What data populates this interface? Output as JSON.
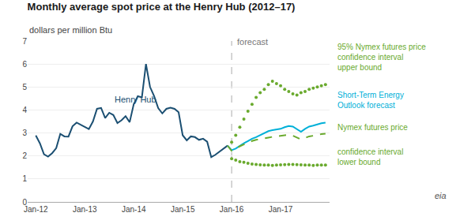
{
  "chart_data": {
    "type": "line",
    "title": "Monthly average spot price at the Henry Hub (2012–17)",
    "subtitle": "dollars per million Btu",
    "xlim": [
      -2,
      72
    ],
    "xticks": [
      {
        "value": 0,
        "label": "Jan-12"
      },
      {
        "value": 12,
        "label": "Jan-13"
      },
      {
        "value": 24,
        "label": "Jan-14"
      },
      {
        "value": 36,
        "label": "Jan-15"
      },
      {
        "value": 48,
        "label": "Jan-16"
      },
      {
        "value": 60,
        "label": "Jan-17"
      }
    ],
    "ylim": [
      0,
      7
    ],
    "yticks": [
      0,
      1,
      2,
      3,
      4,
      5,
      6,
      7
    ],
    "grid": "y",
    "vlines": [
      {
        "x": 48,
        "color": "#aaaaaa",
        "line_style": "dash"
      }
    ],
    "annotations": [
      {
        "text": "forecast",
        "x": 49,
        "y": 6.7,
        "color": "#777777"
      },
      {
        "text": "Henry Hub",
        "x": 19,
        "y": 4.2,
        "color": "#1b4f72"
      }
    ],
    "logo_text": "eia",
    "series": [
      {
        "color": "#1b4f72",
        "line_style": "solid",
        "marker": "none",
        "x": [
          0,
          1,
          2,
          3,
          4,
          5,
          6,
          7,
          8,
          9,
          10,
          11,
          12,
          13,
          14,
          15,
          16,
          17,
          18,
          19,
          20,
          21,
          22,
          23,
          24,
          25,
          26,
          27,
          28,
          29,
          30,
          31,
          32,
          33,
          34,
          35,
          36,
          37,
          38,
          39,
          40,
          41,
          42,
          43,
          44,
          45,
          46,
          47
        ],
        "values": [
          2.89,
          2.55,
          2.07,
          1.97,
          2.12,
          2.34,
          2.96,
          2.85,
          2.84,
          3.29,
          3.45,
          3.36,
          3.27,
          3.17,
          3.5,
          4.05,
          4.09,
          3.65,
          3.88,
          3.78,
          3.43,
          3.55,
          3.73,
          3.47,
          4.25,
          4.6,
          4.55,
          6.0,
          5.0,
          4.6,
          4.08,
          3.85,
          4.05,
          4.1,
          4.05,
          3.9,
          2.9,
          2.68,
          2.85,
          2.82,
          2.7,
          2.75,
          2.62,
          1.95,
          2.05,
          2.18,
          2.3,
          2.45
        ]
      },
      {
        "name": "Short-Term Energy\nOutlook forecast",
        "color": "#00b0d8",
        "line_style": "solid",
        "marker": "none",
        "x": [
          47,
          48,
          49,
          50,
          51,
          52,
          53,
          54,
          55,
          56,
          57,
          58,
          59,
          60,
          61,
          62,
          63,
          64,
          65,
          66,
          67,
          68,
          69,
          70,
          71
        ],
        "values": [
          2.45,
          2.25,
          2.32,
          2.45,
          2.55,
          2.65,
          2.75,
          2.82,
          2.9,
          3.0,
          3.08,
          3.12,
          3.15,
          3.18,
          3.25,
          3.3,
          3.28,
          3.15,
          3.05,
          3.18,
          3.28,
          3.32,
          3.38,
          3.42,
          3.45
        ]
      },
      {
        "name": "Nymex futures price",
        "color": "#6aaa2e",
        "line_style": "dash",
        "marker": "none",
        "x": [
          47,
          48,
          49,
          50,
          51,
          52,
          53,
          54,
          55,
          56,
          57,
          58,
          59,
          60,
          61,
          62,
          63,
          64,
          65,
          66,
          67,
          68,
          69,
          70,
          71
        ],
        "values": [
          2.45,
          2.22,
          2.3,
          2.42,
          2.5,
          2.58,
          2.65,
          2.7,
          2.74,
          2.78,
          2.8,
          2.83,
          2.86,
          2.88,
          2.9,
          2.92,
          2.88,
          2.8,
          2.72,
          2.78,
          2.85,
          2.88,
          2.92,
          2.95,
          2.97
        ]
      },
      {
        "name": "95% Nymex futures price\nconfidence interval\nupper bound",
        "color": "#6aaa2e",
        "line_style": "none",
        "marker": "circle",
        "x": [
          48,
          49,
          50,
          51,
          52,
          53,
          54,
          55,
          56,
          57,
          58,
          59,
          60,
          61,
          62,
          63,
          64,
          65,
          66,
          67,
          68,
          69,
          70,
          71
        ],
        "values": [
          2.6,
          2.9,
          3.25,
          3.6,
          3.95,
          4.25,
          4.55,
          4.75,
          4.9,
          5.1,
          5.25,
          5.15,
          5.05,
          4.9,
          4.8,
          4.7,
          4.65,
          4.75,
          4.8,
          4.9,
          4.95,
          5.0,
          5.05,
          5.1
        ]
      },
      {
        "name": "confidence interval\nlower bound",
        "color": "#6aaa2e",
        "line_style": "none",
        "marker": "circle",
        "x": [
          48,
          49,
          50,
          51,
          52,
          53,
          54,
          55,
          56,
          57,
          58,
          59,
          60,
          61,
          62,
          63,
          64,
          65,
          66,
          67,
          68,
          69,
          70,
          71
        ],
        "values": [
          1.88,
          1.82,
          1.75,
          1.72,
          1.68,
          1.65,
          1.63,
          1.61,
          1.6,
          1.6,
          1.59,
          1.6,
          1.61,
          1.62,
          1.63,
          1.63,
          1.62,
          1.61,
          1.6,
          1.6,
          1.59,
          1.6,
          1.6,
          1.6
        ]
      }
    ]
  }
}
